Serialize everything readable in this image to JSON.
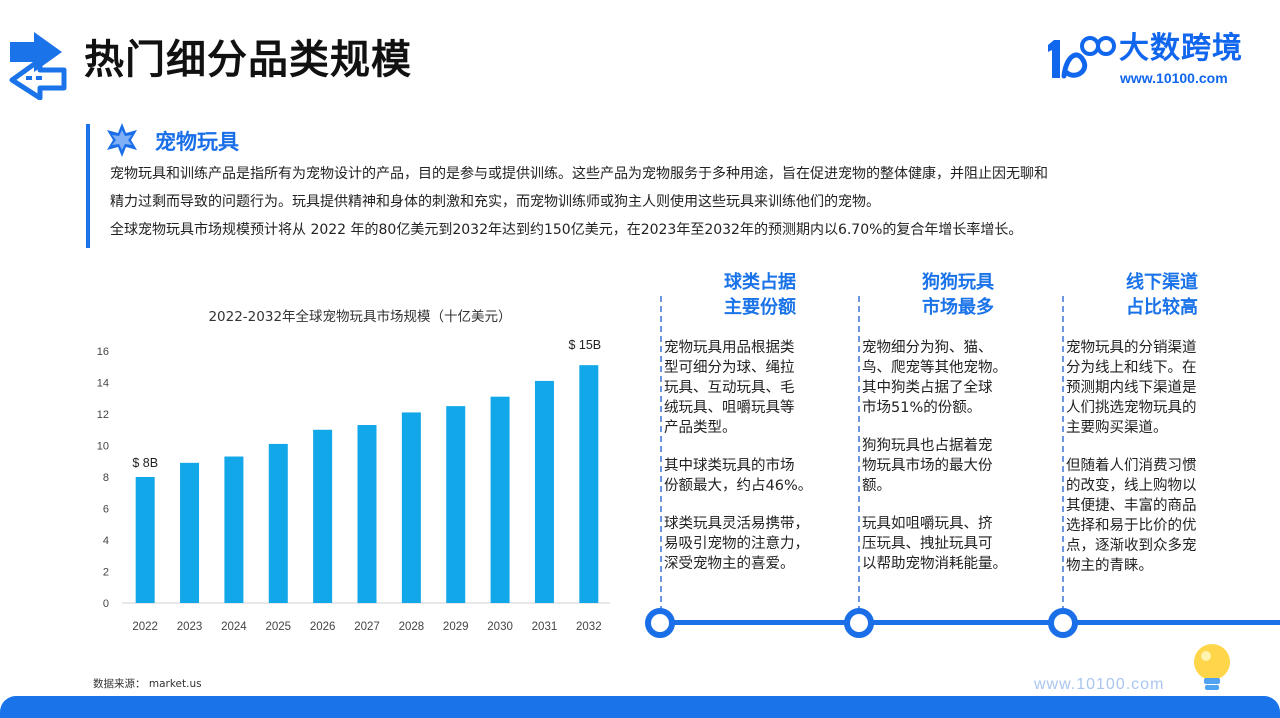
{
  "header": {
    "title": "热门细分品类规模",
    "logo_name": "大数跨境",
    "logo_url": "www.10100.com"
  },
  "intro": {
    "section_title": "宠物玩具",
    "lines": [
      "宠物玩具和训练产品是指所有为宠物设计的产品，目的是参与或提供训练。这些产品为宠物服务于多种用途，旨在促进宠物的整体健康，并阻止因无聊和",
      "精力过剩而导致的问题行为。玩具提供精神和身体的刺激和充实，而宠物训练师或狗主人则使用这些玩具来训练他们的宠物。",
      "全球宠物玩具市场规模预计将从 2022 年的80亿美元到2032年达到约150亿美元，在2023年至2032年的预测期内以6.70%的复合年增长率增长。"
    ]
  },
  "chart_data": {
    "type": "bar",
    "title": "2022-2032年全球宠物玩具市场规模（十亿美元）",
    "categories": [
      "2022",
      "2023",
      "2024",
      "2025",
      "2026",
      "2027",
      "2028",
      "2029",
      "2030",
      "2031",
      "2032"
    ],
    "values": [
      8.0,
      8.9,
      9.3,
      10.1,
      11.0,
      11.3,
      12.1,
      12.5,
      13.1,
      14.1,
      15.1
    ],
    "ylim": [
      0,
      16
    ],
    "yticks": [
      "0",
      "2",
      "4",
      "6",
      "8",
      "10",
      "12",
      "14",
      "16"
    ],
    "annotations": {
      "first": "$ 8B",
      "last": "$ 15B"
    },
    "bar_color": "#12a7e8",
    "grid": false
  },
  "columns": [
    {
      "title_lines": [
        "球类占据",
        "主要份额"
      ],
      "paragraphs": [
        [
          "宠物玩具用品根据类",
          "型可细分为球、绳拉",
          "玩具、互动玩具、毛",
          "绒玩具、咀嚼玩具等",
          "产品类型。"
        ],
        [
          "其中球类玩具的市场",
          "份额最大，约占46%。"
        ],
        [
          "球类玩具灵活易携带，",
          "易吸引宠物的注意力，",
          "深受宠物主的喜爱。"
        ]
      ]
    },
    {
      "title_lines": [
        "狗狗玩具",
        "市场最多"
      ],
      "paragraphs": [
        [
          "宠物细分为狗、猫、",
          "鸟、爬宠等其他宠物。",
          "其中狗类占据了全球",
          "市场51%的份额。"
        ],
        [
          "狗狗玩具也占据着宠",
          "物玩具市场的最大份",
          "额。"
        ],
        [
          "玩具如咀嚼玩具、挤",
          "压玩具、拽扯玩具可",
          "以帮助宠物消耗能量。"
        ]
      ]
    },
    {
      "title_lines": [
        "线下渠道",
        "占比较高"
      ],
      "paragraphs": [
        [
          "宠物玩具的分销渠道",
          "分为线上和线下。在",
          "预测期内线下渠道是",
          "人们挑选宠物玩具的",
          "主要购买渠道。"
        ],
        [
          "但随着人们消费习惯",
          "的改变，线上购物以",
          "其便捷、丰富的商品",
          "选择和易于比价的优",
          "点，逐渐收到众多宠",
          "物主的青睐。"
        ]
      ]
    }
  ],
  "footer": {
    "source": "数据来源： market.us",
    "url": "www.10100.com"
  },
  "colors": {
    "accent": "#1a73e8",
    "bar": "#12a7e8"
  }
}
